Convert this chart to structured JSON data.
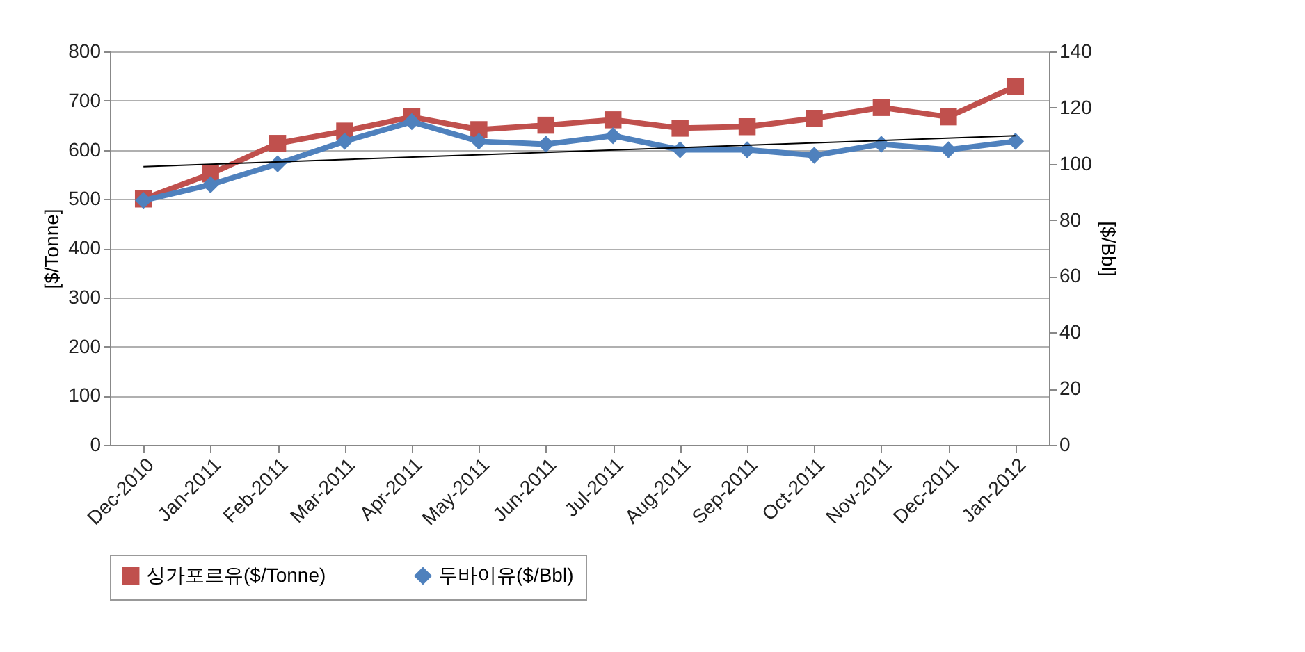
{
  "chart_data": {
    "type": "line",
    "categories": [
      "Dec-2010",
      "Jan-2011",
      "Feb-2011",
      "Mar-2011",
      "Apr-2011",
      "May-2011",
      "Jun-2011",
      "Jul-2011",
      "Aug-2011",
      "Sep-2011",
      "Oct-2011",
      "Nov-2011",
      "Dec-2011",
      "Jan-2012"
    ],
    "series": [
      {
        "name": "싱가포르유($/Tonne)",
        "color": "#c0504d",
        "marker": "square",
        "values": [
          500,
          551,
          613,
          638,
          667,
          641,
          650,
          661,
          644,
          647,
          664,
          686,
          667,
          729
        ]
      },
      {
        "name": "두바이유($/Bbl)",
        "color": "#4f81bd",
        "marker": "diamond",
        "axis": "y2",
        "values": [
          87,
          92.6,
          100,
          108,
          115,
          108,
          107,
          110,
          105,
          105,
          103,
          107,
          105,
          108
        ]
      },
      {
        "type": "line",
        "color": "#000000",
        "marker": "none",
        "axis": "y2",
        "x": [
          "Dec-2010",
          "Jan-2012"
        ],
        "values": [
          99,
          110
        ]
      }
    ],
    "ylabel": "[$/Tonne]",
    "y2label": "[$/Bbl]",
    "ylim": [
      0,
      800
    ],
    "yticks": [
      0,
      100,
      200,
      300,
      400,
      500,
      600,
      700,
      800
    ],
    "y2lim": [
      0,
      140
    ],
    "y2ticks": [
      0,
      20,
      40,
      60,
      80,
      100,
      120,
      140
    ],
    "grid": "y",
    "legend": "bottom"
  }
}
